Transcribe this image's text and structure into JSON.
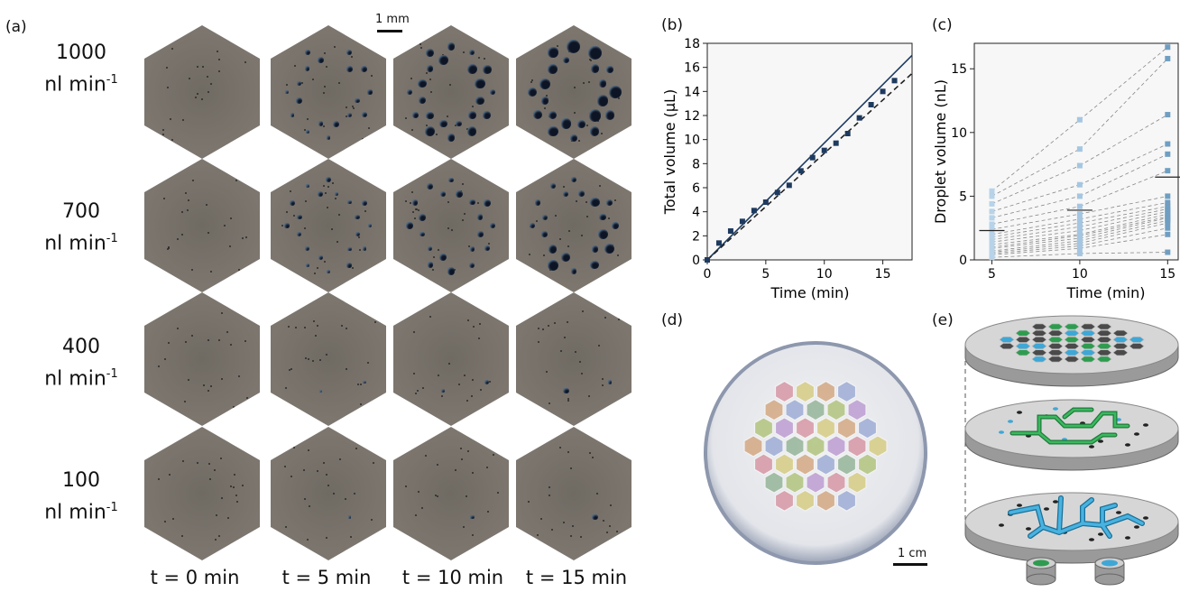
{
  "panels": {
    "a": "(a)",
    "b": "(b)",
    "c": "(c)",
    "d": "(d)",
    "e": "(e)"
  },
  "flow_rates": [
    {
      "value": "1000",
      "unit": "nl min",
      "exp": "-1"
    },
    {
      "value": "700",
      "unit": "nl min",
      "exp": "-1"
    },
    {
      "value": "400",
      "unit": "nl min",
      "exp": "-1"
    },
    {
      "value": "100",
      "unit": "nl min",
      "exp": "-1"
    }
  ],
  "times": [
    "t = 0 min",
    "t = 5 min",
    "t = 10 min",
    "t = 15 min"
  ],
  "scalebar_a": "1 mm",
  "scalebar_d": "1 cm",
  "droplet_counts": [
    [
      0,
      18,
      22,
      22
    ],
    [
      0,
      20,
      20,
      20
    ],
    [
      0,
      2,
      2,
      2
    ],
    [
      0,
      1,
      1,
      1
    ]
  ],
  "chart_data": [
    {
      "type": "scatter",
      "panel": "b",
      "xlabel": "Time (min)",
      "ylabel": "Total volume (µL)",
      "xlim": [
        0,
        17.5
      ],
      "ylim": [
        0,
        18
      ],
      "xticks": [
        0,
        5,
        10,
        15
      ],
      "yticks": [
        0,
        2,
        4,
        6,
        8,
        10,
        12,
        14,
        16,
        18
      ],
      "series": [
        {
          "x": [
            0,
            1,
            2,
            3,
            4,
            5,
            6,
            7,
            8,
            9,
            10,
            11,
            12,
            13,
            14,
            15,
            16
          ],
          "y": [
            0,
            1.4,
            2.4,
            3.2,
            4.1,
            4.8,
            5.6,
            6.2,
            7.4,
            8.5,
            9.1,
            9.7,
            10.5,
            11.8,
            12.9,
            14.0,
            14.9
          ]
        }
      ],
      "lines": [
        {
          "style": "solid",
          "x": [
            0,
            17.5
          ],
          "y": [
            0,
            17.0
          ]
        },
        {
          "style": "dashed",
          "x": [
            0,
            17.5
          ],
          "y": [
            0,
            15.5
          ]
        }
      ],
      "colors": {
        "points": "#1e3a5f",
        "solid": "#1e3a5f",
        "dashed": "#222222"
      }
    },
    {
      "type": "scatter",
      "panel": "c",
      "xlabel": "Time (min)",
      "ylabel": "Droplet volume (nL)",
      "xlim": [
        4,
        15.6
      ],
      "ylim": [
        0,
        17
      ],
      "xticks": [
        5,
        10,
        15
      ],
      "yticks": [
        0,
        5,
        10,
        15
      ],
      "x": [
        5,
        10,
        15
      ],
      "droplets": [
        [
          0.2,
          0.5,
          0.6
        ],
        [
          0.4,
          0.9,
          2.0
        ],
        [
          0.5,
          1.1,
          2.5
        ],
        [
          0.6,
          1.3,
          2.9
        ],
        [
          0.7,
          1.5,
          3.1
        ],
        [
          0.9,
          1.7,
          3.3
        ],
        [
          1.0,
          1.9,
          3.4
        ],
        [
          1.2,
          2.0,
          3.6
        ],
        [
          1.4,
          2.3,
          3.8
        ],
        [
          1.6,
          2.6,
          4.0
        ],
        [
          1.8,
          2.9,
          4.2
        ],
        [
          2.0,
          3.2,
          4.5
        ],
        [
          2.4,
          3.6,
          5.0
        ],
        [
          2.8,
          4.2,
          7.0
        ],
        [
          3.3,
          5.0,
          8.3
        ],
        [
          3.8,
          5.9,
          9.1
        ],
        [
          4.4,
          7.4,
          11.4
        ],
        [
          5.0,
          8.7,
          15.8
        ],
        [
          5.4,
          11.0,
          16.7
        ]
      ],
      "means": [
        2.3,
        3.9,
        6.5
      ],
      "colors": {
        "t5": "#b7d3e9",
        "t10": "#a4c6e2",
        "t15": "#6f9ec2",
        "mean": "#222222",
        "dash": "#888888"
      }
    }
  ],
  "colors": {
    "hex_bg": "#77716a",
    "droplet": "#0d1424",
    "green": "#2e9c4f",
    "blue": "#3ea7d6",
    "grey_hex": "#4a4a4a"
  }
}
